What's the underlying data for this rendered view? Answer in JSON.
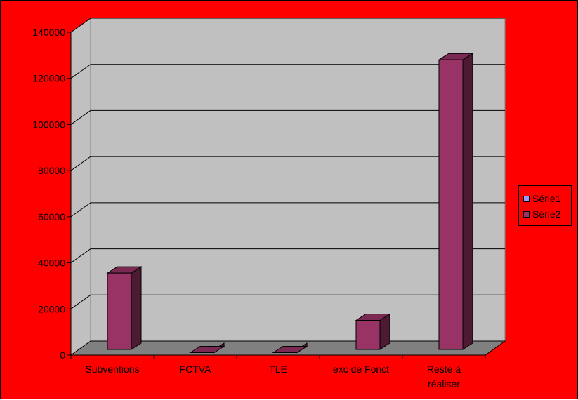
{
  "colors": {
    "background": "#ff0000",
    "wall": "#c0c0c0",
    "floor": "#808080",
    "series1": "#9999ff",
    "series2_front": "#993366",
    "series2_side": "#4d1a33",
    "series2_top": "#7a2952"
  },
  "chart_data": {
    "type": "bar",
    "style": "3d-column",
    "title": "",
    "xlabel": "",
    "ylabel": "",
    "ylim": [
      0,
      140000
    ],
    "yticks": [
      "0",
      "20000",
      "40000",
      "60000",
      "80000",
      "100000",
      "120000",
      "140000"
    ],
    "categories": [
      "Subventions",
      "FCTVA",
      "TLE",
      "exc de Fonct",
      "Reste à réaliser"
    ],
    "series": [
      {
        "name": "Série1",
        "values": [
          0,
          0,
          0,
          0,
          0
        ]
      },
      {
        "name": "Série2",
        "values": [
          38000,
          3500,
          3500,
          17500,
          130500
        ]
      }
    ],
    "grid": true,
    "legend_position": "right"
  }
}
